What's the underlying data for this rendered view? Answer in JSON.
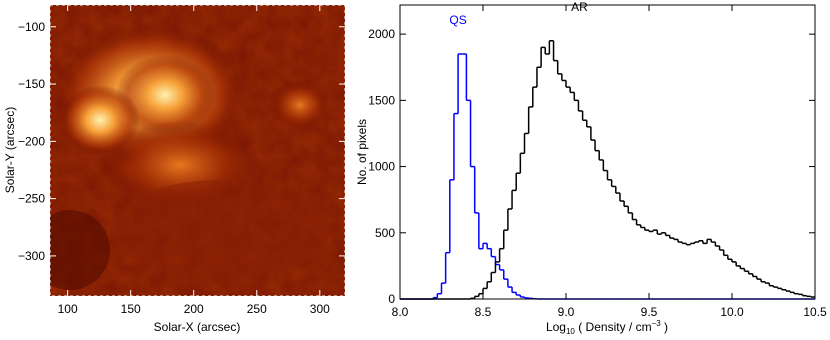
{
  "chart_data": [
    {
      "type": "image",
      "xlabel": "Solar-X (arcsec)",
      "ylabel": "Solar-Y (arcsec)",
      "xlim": [
        86,
        320
      ],
      "ylim": [
        -335,
        -81
      ],
      "xticks": [
        100,
        150,
        200,
        250,
        300
      ],
      "yticks": [
        {
          "value": -100,
          "label": "−100"
        },
        {
          "value": -150,
          "label": "−150"
        },
        {
          "value": -200,
          "label": "−200"
        },
        {
          "value": -250,
          "label": "−250"
        },
        {
          "value": -300,
          "label": "−300"
        }
      ]
    },
    {
      "type": "histogram",
      "xlabel": {
        "base": "Log",
        "sub": "10",
        "text": " ( Density / cm",
        "sup": "−3",
        "end": " )"
      },
      "ylabel": "No. of pixels",
      "xlim": [
        8.0,
        10.5
      ],
      "ylim": [
        0,
        2220
      ],
      "xticks": [
        {
          "value": 8,
          "label": "8.0"
        },
        8.5,
        {
          "value": 9,
          "label": "9.0"
        },
        9.5,
        {
          "value": 10,
          "label": "10.0"
        },
        10.5
      ],
      "yticks": [
        0,
        500,
        1000,
        1500,
        2000
      ],
      "bins": [
        8.0,
        8.025,
        8.05,
        8.075,
        8.1,
        8.125,
        8.15,
        8.175,
        8.2,
        8.225,
        8.25,
        8.275,
        8.3,
        8.325,
        8.35,
        8.375,
        8.4,
        8.425,
        8.45,
        8.475,
        8.5,
        8.525,
        8.55,
        8.575,
        8.6,
        8.625,
        8.65,
        8.675,
        8.7,
        8.725,
        8.75,
        8.775,
        8.8,
        8.825,
        8.85,
        8.875,
        8.9,
        8.925,
        8.95,
        8.975,
        9.0,
        9.025,
        9.05,
        9.075,
        9.1,
        9.125,
        9.15,
        9.175,
        9.2,
        9.225,
        9.25,
        9.275,
        9.3,
        9.325,
        9.35,
        9.375,
        9.4,
        9.425,
        9.45,
        9.475,
        9.5,
        9.525,
        9.55,
        9.575,
        9.6,
        9.625,
        9.65,
        9.675,
        9.7,
        9.725,
        9.75,
        9.775,
        9.8,
        9.825,
        9.85,
        9.875,
        9.9,
        9.925,
        9.95,
        9.975,
        10.0,
        10.025,
        10.05,
        10.075,
        10.1,
        10.125,
        10.15,
        10.175,
        10.2,
        10.225,
        10.25,
        10.275,
        10.3,
        10.325,
        10.35,
        10.375,
        10.4,
        10.425,
        10.45,
        10.475,
        10.5
      ],
      "series": [
        {
          "name": "QS",
          "color": "#0000ff",
          "values": [
            0,
            0,
            0,
            0,
            0,
            0,
            0,
            0,
            10,
            40,
            120,
            350,
            900,
            1400,
            1850,
            1850,
            1500,
            1000,
            650,
            380,
            420,
            380,
            320,
            260,
            220,
            150,
            90,
            50,
            30,
            15,
            8,
            5,
            2,
            0,
            0,
            0,
            0,
            0,
            0,
            0,
            0,
            0,
            0,
            0,
            0,
            0,
            0,
            0,
            0,
            0,
            0,
            0,
            0,
            0,
            0,
            0,
            0,
            0,
            0,
            0,
            0,
            0,
            0,
            0,
            0,
            0,
            0,
            0,
            0,
            0,
            0,
            0,
            0,
            0,
            0,
            0,
            0,
            0,
            0,
            0,
            0,
            0,
            0,
            0,
            0,
            0,
            0,
            0,
            0,
            0,
            0,
            0,
            0,
            0,
            0,
            0,
            0,
            0,
            0,
            0
          ]
        },
        {
          "name": "AR",
          "color": "#000000",
          "values": [
            0,
            0,
            0,
            0,
            0,
            0,
            0,
            0,
            0,
            0,
            0,
            0,
            0,
            0,
            0,
            0,
            0,
            5,
            20,
            40,
            80,
            130,
            200,
            280,
            380,
            520,
            680,
            820,
            950,
            1100,
            1250,
            1450,
            1600,
            1750,
            1900,
            1850,
            1950,
            1800,
            1700,
            1650,
            1600,
            1560,
            1500,
            1420,
            1350,
            1300,
            1200,
            1120,
            1050,
            970,
            900,
            850,
            800,
            740,
            700,
            650,
            600,
            560,
            540,
            520,
            510,
            520,
            490,
            500,
            480,
            460,
            450,
            430,
            420,
            410,
            420,
            430,
            440,
            420,
            450,
            430,
            400,
            370,
            330,
            300,
            280,
            250,
            230,
            210,
            190,
            170,
            150,
            130,
            120,
            100,
            90,
            80,
            70,
            60,
            50,
            40,
            35,
            25,
            20,
            15
          ]
        }
      ]
    }
  ]
}
